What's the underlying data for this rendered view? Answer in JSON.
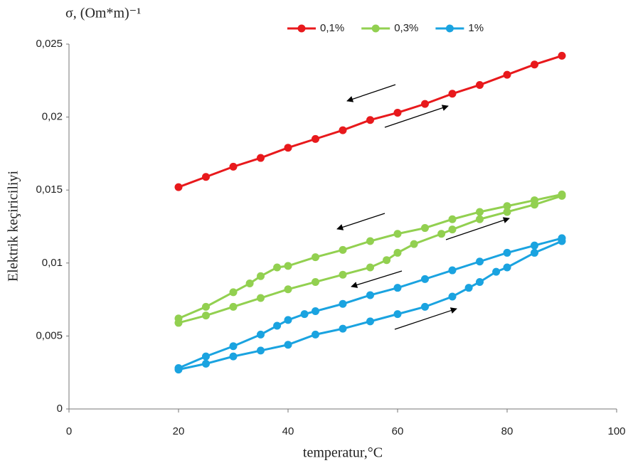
{
  "chart_data": {
    "type": "line",
    "title": "σ, (Om*m)⁻¹",
    "y_label": "Elektrik keçiriciliyi",
    "x_label": "temperatur,°C",
    "legend": "top",
    "grid": false,
    "xlim": [
      0,
      100
    ],
    "xticks": [
      0,
      20,
      40,
      60,
      80,
      100
    ],
    "ylim": [
      0,
      0.025
    ],
    "yticks": [
      0,
      {
        "value": 0.005,
        "label": "0,005"
      },
      {
        "value": 0.01,
        "label": "0,01"
      },
      {
        "value": 0.015,
        "label": "0,015"
      },
      {
        "value": 0.02,
        "label": "0,02"
      },
      {
        "value": 0.025,
        "label": "0,025"
      }
    ],
    "series": [
      {
        "name": "0,1%",
        "color": "#e8191c",
        "x": [
          20,
          25,
          30,
          35,
          40,
          45,
          50,
          55,
          60,
          65,
          70,
          75,
          80,
          85,
          90
        ],
        "values": [
          0.0152,
          0.0159,
          0.0166,
          0.0172,
          0.0179,
          0.0185,
          0.0191,
          0.0198,
          0.0203,
          0.0209,
          0.0216,
          0.0222,
          0.0229,
          0.0236,
          0.0242
        ]
      },
      {
        "name": "0,3%",
        "color": "#92d050",
        "x": [
          20,
          25,
          30,
          35,
          40,
          45,
          50,
          55,
          58,
          60,
          63,
          68,
          70,
          75,
          80,
          85,
          90,
          90,
          85,
          80,
          75,
          70,
          65,
          60,
          55,
          50,
          45,
          40,
          38,
          35,
          33,
          30,
          25,
          20
        ],
        "values": [
          0.0059,
          0.0064,
          0.007,
          0.0076,
          0.0082,
          0.0087,
          0.0092,
          0.0097,
          0.0102,
          0.0107,
          0.0113,
          0.012,
          0.0123,
          0.013,
          0.0135,
          0.014,
          0.0146,
          0.0147,
          0.0143,
          0.0139,
          0.0135,
          0.013,
          0.0124,
          0.012,
          0.0115,
          0.0109,
          0.0104,
          0.0098,
          0.0097,
          0.0091,
          0.0086,
          0.008,
          0.007,
          0.0062
        ]
      },
      {
        "name": "1%",
        "color": "#1aa3e0",
        "x": [
          20,
          25,
          30,
          35,
          40,
          45,
          50,
          55,
          60,
          65,
          70,
          73,
          75,
          78,
          80,
          85,
          90,
          90,
          85,
          80,
          75,
          70,
          65,
          60,
          55,
          50,
          45,
          43,
          40,
          38,
          35,
          30,
          25,
          20
        ],
        "values": [
          0.0027,
          0.0031,
          0.0036,
          0.004,
          0.0044,
          0.0051,
          0.0055,
          0.006,
          0.0065,
          0.007,
          0.0077,
          0.0083,
          0.0087,
          0.0094,
          0.0097,
          0.0107,
          0.0115,
          0.0117,
          0.0112,
          0.0107,
          0.0101,
          0.0095,
          0.0089,
          0.0083,
          0.0078,
          0.0072,
          0.0067,
          0.0065,
          0.0061,
          0.0057,
          0.0051,
          0.0043,
          0.0036,
          0.0028
        ]
      }
    ]
  }
}
